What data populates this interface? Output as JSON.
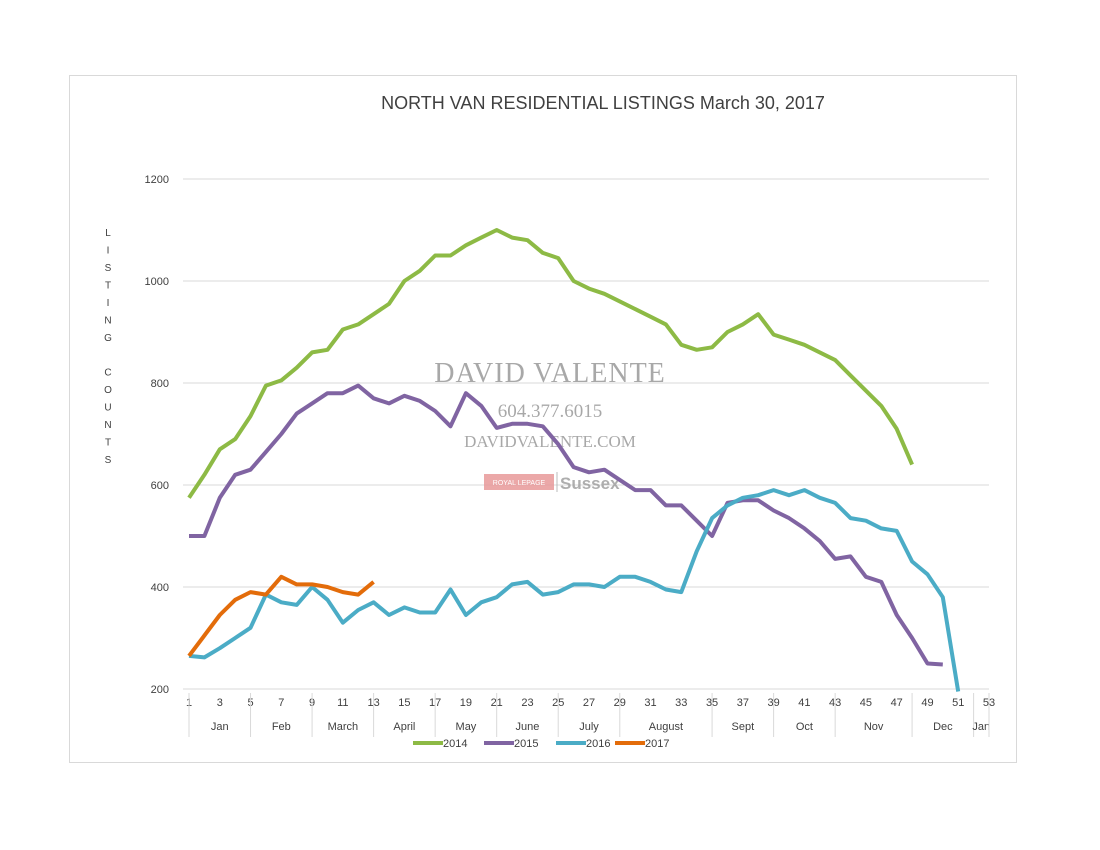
{
  "chart_data": {
    "type": "line",
    "title": "NORTH VAN RESIDENTIAL LISTINGS March 30, 2017",
    "ylabel": "LISTING COUNTS",
    "xlabel": "",
    "ylim": [
      200,
      1200
    ],
    "xlim": [
      1,
      53
    ],
    "yticks": [
      200,
      400,
      600,
      800,
      1000,
      1200
    ],
    "xticks": [
      1,
      3,
      5,
      7,
      9,
      11,
      13,
      15,
      17,
      19,
      21,
      23,
      25,
      27,
      29,
      31,
      33,
      35,
      37,
      39,
      41,
      43,
      45,
      47,
      49,
      51,
      53
    ],
    "months": [
      {
        "label": "Jan",
        "start": 1,
        "end": 5
      },
      {
        "label": "Feb",
        "start": 5,
        "end": 9
      },
      {
        "label": "March",
        "start": 9,
        "end": 13
      },
      {
        "label": "April",
        "start": 13,
        "end": 17
      },
      {
        "label": "May",
        "start": 17,
        "end": 21
      },
      {
        "label": "June",
        "start": 21,
        "end": 25
      },
      {
        "label": "July",
        "start": 25,
        "end": 29
      },
      {
        "label": "August",
        "start": 29,
        "end": 35
      },
      {
        "label": "Sept",
        "start": 35,
        "end": 39
      },
      {
        "label": "Oct",
        "start": 39,
        "end": 43
      },
      {
        "label": "Nov",
        "start": 43,
        "end": 48
      },
      {
        "label": "Dec",
        "start": 48,
        "end": 52
      },
      {
        "label": "Jan",
        "start": 52,
        "end": 53
      }
    ],
    "grid": true,
    "legend": "bottom",
    "series": [
      {
        "name": "2014",
        "color": "#8dba45",
        "x": [
          1,
          2,
          3,
          4,
          5,
          6,
          7,
          8,
          9,
          10,
          11,
          12,
          13,
          14,
          15,
          16,
          17,
          18,
          19,
          20,
          21,
          22,
          23,
          24,
          25,
          26,
          27,
          28,
          29,
          30,
          31,
          32,
          33,
          34,
          35,
          36,
          37,
          38,
          39,
          40,
          41,
          42,
          43,
          44,
          45,
          46,
          47,
          48
        ],
        "y": [
          575,
          620,
          670,
          690,
          735,
          795,
          805,
          830,
          860,
          865,
          905,
          915,
          935,
          955,
          1000,
          1020,
          1050,
          1050,
          1070,
          1085,
          1100,
          1085,
          1080,
          1055,
          1045,
          1000,
          985,
          975,
          960,
          945,
          930,
          915,
          875,
          865,
          870,
          900,
          915,
          935,
          895,
          885,
          875,
          860,
          845,
          815,
          785,
          755,
          710,
          640
        ]
      },
      {
        "name": "2015",
        "color": "#8064a2",
        "x": [
          1,
          2,
          3,
          4,
          5,
          6,
          7,
          8,
          9,
          10,
          11,
          12,
          13,
          14,
          15,
          16,
          17,
          18,
          19,
          20,
          21,
          22,
          23,
          24,
          25,
          26,
          27,
          28,
          29,
          30,
          31,
          32,
          33,
          34,
          35,
          36,
          37,
          38,
          39,
          40,
          41,
          42,
          43,
          44,
          45,
          46,
          47,
          48,
          49,
          50
        ],
        "y": [
          500,
          500,
          575,
          620,
          630,
          665,
          700,
          740,
          760,
          780,
          780,
          795,
          770,
          760,
          775,
          765,
          745,
          715,
          780,
          755,
          712,
          720,
          720,
          715,
          680,
          635,
          625,
          630,
          610,
          590,
          590,
          560,
          560,
          530,
          500,
          565,
          570,
          570,
          550,
          535,
          515,
          490,
          455,
          460,
          420,
          410,
          345,
          300,
          250,
          248
        ]
      },
      {
        "name": "2016",
        "color": "#4bacc6",
        "x": [
          1,
          2,
          3,
          4,
          5,
          6,
          7,
          8,
          9,
          10,
          11,
          12,
          13,
          14,
          15,
          16,
          17,
          18,
          19,
          20,
          21,
          22,
          23,
          24,
          25,
          26,
          27,
          28,
          29,
          30,
          31,
          32,
          33,
          34,
          35,
          36,
          37,
          38,
          39,
          40,
          41,
          42,
          43,
          44,
          45,
          46,
          47,
          48,
          49,
          50,
          51
        ],
        "y": [
          265,
          262,
          280,
          300,
          320,
          385,
          370,
          365,
          400,
          375,
          330,
          355,
          370,
          345,
          360,
          350,
          350,
          395,
          345,
          370,
          380,
          405,
          410,
          385,
          390,
          405,
          405,
          400,
          420,
          420,
          410,
          395,
          390,
          470,
          535,
          560,
          575,
          580,
          590,
          580,
          590,
          575,
          565,
          535,
          530,
          515,
          510,
          450,
          425,
          380,
          195
        ]
      },
      {
        "name": "2017",
        "color": "#e36c0a",
        "x": [
          1,
          2,
          3,
          4,
          5,
          6,
          7,
          8,
          9,
          10,
          11,
          12,
          13
        ],
        "y": [
          265,
          305,
          345,
          375,
          390,
          385,
          420,
          405,
          405,
          400,
          390,
          385,
          410
        ]
      }
    ]
  },
  "watermark": {
    "name": "DAVID VALENTE",
    "phone": "604.377.6015",
    "website": "DAVIDVALENTE.COM",
    "brand_small": "ROYAL LEPAGE",
    "brand": "Sussex",
    "brand_color": "#e8999a"
  }
}
